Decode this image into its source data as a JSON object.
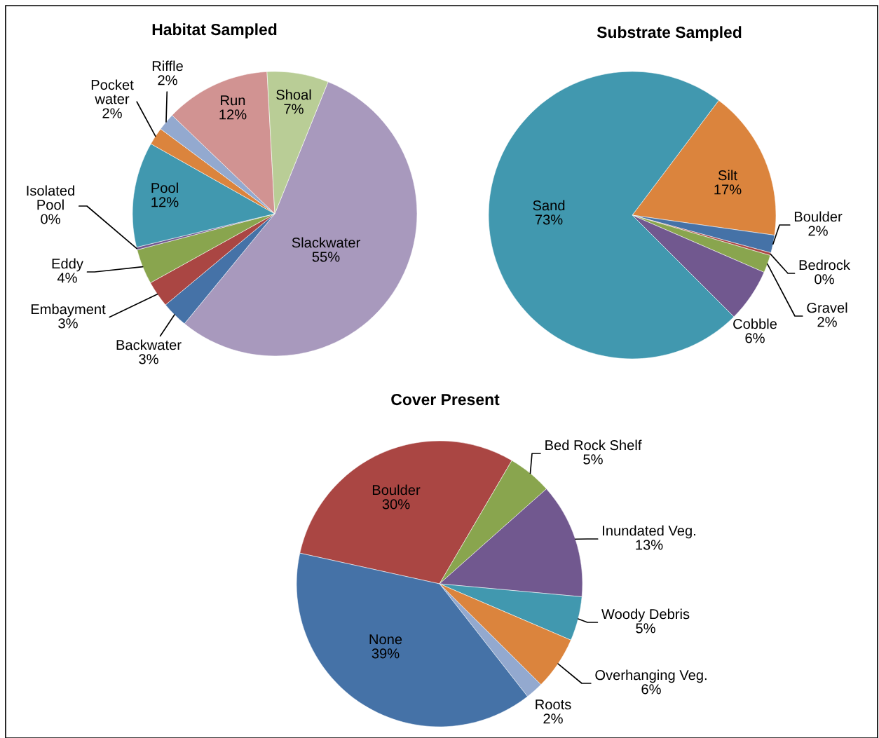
{
  "chart_data": [
    {
      "type": "pie",
      "title": "Habitat Sampled",
      "categories": [
        "Slackwater",
        "Backwater",
        "Embayment",
        "Eddy",
        "Isolated Pool",
        "Pool",
        "Pocket water",
        "Riffle",
        "Run",
        "Shoal"
      ],
      "values": [
        55,
        3,
        3,
        4,
        0.3,
        12,
        2,
        2,
        12,
        7
      ],
      "colors": [
        "#a899bd",
        "#4572a7",
        "#aa4643",
        "#89a54e",
        "#71588f",
        "#4198af",
        "#db843d",
        "#93a9cf",
        "#d19392",
        "#b9cd96"
      ],
      "value_labels": [
        "55%",
        "3%",
        "3%",
        "4%",
        "0%",
        "12%",
        "2%",
        "2%",
        "12%",
        "7%"
      ]
    },
    {
      "type": "pie",
      "title": "Substrate Sampled",
      "categories": [
        "Silt",
        "Boulder",
        "Bedrock",
        "Gravel",
        "Cobble",
        "Sand"
      ],
      "values": [
        17,
        2,
        0.3,
        2,
        6,
        73
      ],
      "colors": [
        "#db843d",
        "#4572a7",
        "#aa4643",
        "#89a54e",
        "#71588f",
        "#4198af"
      ],
      "value_labels": [
        "17%",
        "2%",
        "0%",
        "2%",
        "6%",
        "73%"
      ]
    },
    {
      "type": "pie",
      "title": "Cover Present",
      "categories": [
        "Boulder",
        "Bed Rock Shelf",
        "Inundated Veg.",
        "Woody Debris",
        "Overhanging Veg.",
        "Roots",
        "None"
      ],
      "values": [
        30,
        5,
        13,
        5,
        6,
        2,
        39
      ],
      "colors": [
        "#aa4643",
        "#89a54e",
        "#71588f",
        "#4198af",
        "#db843d",
        "#93a9cf",
        "#4572a7"
      ],
      "value_labels": [
        "30%",
        "5%",
        "13%",
        "5%",
        "6%",
        "2%",
        "39%"
      ]
    }
  ]
}
